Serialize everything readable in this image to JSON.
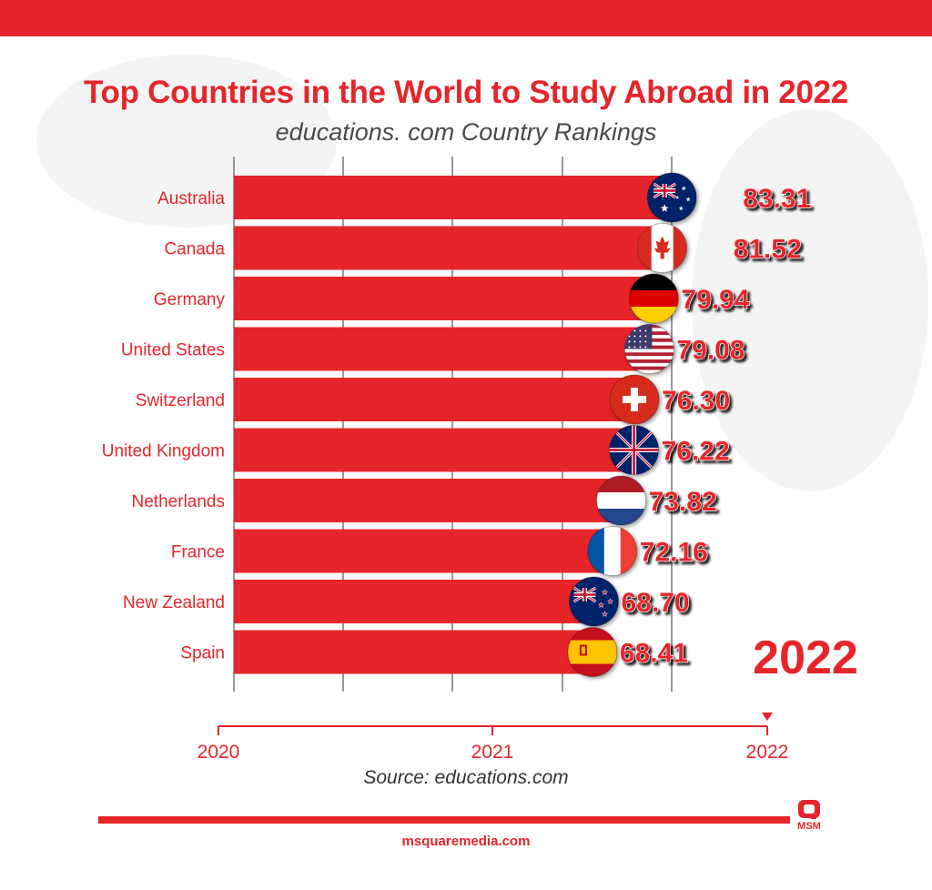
{
  "header": {
    "title": "Top Countries in the World to Study Abroad in 2022",
    "subtitle": "educations. com Country Rankings"
  },
  "chart_data": {
    "type": "bar",
    "orientation": "horizontal",
    "title": "Top Countries in the World to Study Abroad in 2022",
    "subtitle": "educations. com Country Rankings",
    "categories": [
      "Australia",
      "Canada",
      "Germany",
      "United States",
      "Switzerland",
      "United Kingdom",
      "Netherlands",
      "France",
      "New Zealand",
      "Spain"
    ],
    "values": [
      83.31,
      81.52,
      79.94,
      79.08,
      76.3,
      76.22,
      73.82,
      72.16,
      68.7,
      68.41
    ],
    "value_labels": [
      "83.31",
      "81.52",
      "79.94",
      "79.08",
      "76.30",
      "76.22",
      "73.82",
      "72.16",
      "68.70",
      "68.41"
    ],
    "flags": [
      "australia-flag-icon",
      "canada-flag-icon",
      "germany-flag-icon",
      "usa-flag-icon",
      "switzerland-flag-icon",
      "uk-flag-icon",
      "netherlands-flag-icon",
      "france-flag-icon",
      "new-zealand-flag-icon",
      "spain-flag-icon"
    ],
    "year_label": "2022",
    "timeline": {
      "ticks": [
        "2020",
        "2021",
        "2022"
      ],
      "current": "2022"
    },
    "color": "#e5252a"
  },
  "footer": {
    "source": "Source: educations.com",
    "logo_text": "MSM",
    "site": "msquaremedia.com"
  }
}
